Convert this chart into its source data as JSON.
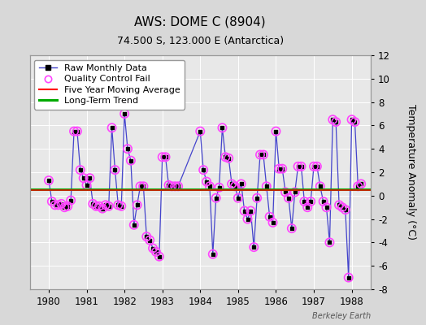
{
  "title": "AWS: DOME C (8904)",
  "subtitle": "74.500 S, 123.000 E (Antarctica)",
  "ylabel": "Temperature Anomaly (°C)",
  "watermark": "Berkeley Earth",
  "ylim": [
    -8,
    12
  ],
  "xlim": [
    1979.5,
    1988.5
  ],
  "yticks": [
    -8,
    -6,
    -4,
    -2,
    0,
    2,
    4,
    6,
    8,
    10,
    12
  ],
  "xticks": [
    1980,
    1981,
    1982,
    1983,
    1984,
    1985,
    1986,
    1987,
    1988
  ],
  "long_term_trend_y": 0.55,
  "background_color": "#d8d8d8",
  "plot_bg_color": "#e8e8e8",
  "raw_x": [
    1980.0,
    1980.083,
    1980.167,
    1980.25,
    1980.333,
    1980.417,
    1980.5,
    1980.583,
    1980.667,
    1980.75,
    1980.833,
    1980.917,
    1981.0,
    1981.083,
    1981.167,
    1981.25,
    1981.333,
    1981.417,
    1981.5,
    1981.583,
    1981.667,
    1981.75,
    1981.833,
    1981.917,
    1982.0,
    1982.083,
    1982.167,
    1982.25,
    1982.333,
    1982.417,
    1982.5,
    1982.583,
    1982.667,
    1982.75,
    1982.833,
    1982.917,
    1983.0,
    1983.083,
    1983.167,
    1983.25,
    1983.333,
    1983.417,
    1984.0,
    1984.083,
    1984.167,
    1984.25,
    1984.333,
    1984.417,
    1984.5,
    1984.583,
    1984.667,
    1984.75,
    1984.833,
    1984.917,
    1985.0,
    1985.083,
    1985.167,
    1985.25,
    1985.333,
    1985.417,
    1985.5,
    1985.583,
    1985.667,
    1985.75,
    1985.833,
    1985.917,
    1986.0,
    1986.083,
    1986.167,
    1986.25,
    1986.333,
    1986.417,
    1986.5,
    1986.583,
    1986.667,
    1986.75,
    1986.833,
    1986.917,
    1987.0,
    1987.083,
    1987.167,
    1987.25,
    1987.333,
    1987.417,
    1987.5,
    1987.583,
    1987.667,
    1987.75,
    1987.833,
    1987.917,
    1988.0,
    1988.083,
    1988.167,
    1988.25
  ],
  "raw_y": [
    1.3,
    -0.5,
    -0.8,
    -0.8,
    -0.7,
    -1.0,
    -0.9,
    -0.4,
    5.5,
    5.5,
    2.2,
    1.5,
    0.9,
    1.5,
    -0.7,
    -0.9,
    -0.9,
    -1.1,
    -0.8,
    -0.9,
    5.8,
    2.2,
    -0.8,
    -0.9,
    7.0,
    4.0,
    3.0,
    -2.5,
    -0.8,
    0.8,
    0.8,
    -3.5,
    -3.8,
    -4.5,
    -4.8,
    -5.2,
    3.3,
    3.3,
    0.9,
    0.8,
    0.8,
    0.8,
    5.5,
    2.2,
    1.2,
    0.8,
    -5.0,
    -0.2,
    0.7,
    5.8,
    3.3,
    3.2,
    1.0,
    0.8,
    -0.2,
    1.0,
    -1.3,
    -2.0,
    -1.3,
    -4.4,
    -0.2,
    3.5,
    3.5,
    0.8,
    -1.8,
    -2.3,
    5.5,
    2.3,
    2.3,
    0.3,
    -0.2,
    -2.8,
    0.3,
    2.5,
    2.5,
    -0.5,
    -1.0,
    -0.5,
    2.5,
    2.5,
    0.8,
    -0.5,
    -1.0,
    -4.0,
    6.5,
    6.3,
    -0.8,
    -1.0,
    -1.2,
    -7.0,
    6.5,
    6.3,
    0.8,
    1.0
  ],
  "qc_x": [
    1980.0,
    1980.083,
    1980.167,
    1980.25,
    1980.333,
    1980.417,
    1980.5,
    1980.583,
    1980.667,
    1980.75,
    1980.833,
    1980.917,
    1981.0,
    1981.083,
    1981.167,
    1981.25,
    1981.333,
    1981.417,
    1981.5,
    1981.583,
    1981.667,
    1981.75,
    1981.833,
    1981.917,
    1982.0,
    1982.083,
    1982.167,
    1982.25,
    1982.333,
    1982.417,
    1982.5,
    1982.583,
    1982.667,
    1982.75,
    1982.833,
    1982.917,
    1983.0,
    1983.083,
    1983.167,
    1983.25,
    1983.333,
    1983.417,
    1984.0,
    1984.083,
    1984.167,
    1984.25,
    1984.333,
    1984.417,
    1984.5,
    1984.583,
    1984.667,
    1984.75,
    1984.833,
    1984.917,
    1985.0,
    1985.083,
    1985.167,
    1985.25,
    1985.333,
    1985.417,
    1985.5,
    1985.583,
    1985.667,
    1985.75,
    1985.833,
    1985.917,
    1986.0,
    1986.083,
    1986.167,
    1986.25,
    1986.333,
    1986.417,
    1986.5,
    1986.583,
    1986.667,
    1986.75,
    1986.833,
    1986.917,
    1987.0,
    1987.083,
    1987.167,
    1987.25,
    1987.333,
    1987.417,
    1987.5,
    1987.583,
    1987.667,
    1987.75,
    1987.833,
    1987.917,
    1988.0,
    1988.083,
    1988.167,
    1988.25
  ],
  "qc_y": [
    1.3,
    -0.5,
    -0.8,
    -0.8,
    -0.7,
    -1.0,
    -0.9,
    -0.4,
    5.5,
    5.5,
    2.2,
    1.5,
    0.9,
    1.5,
    -0.7,
    -0.9,
    -0.9,
    -1.1,
    -0.8,
    -0.9,
    5.8,
    2.2,
    -0.8,
    -0.9,
    7.0,
    4.0,
    3.0,
    -2.5,
    -0.8,
    0.8,
    0.8,
    -3.5,
    -3.8,
    -4.5,
    -4.8,
    -5.2,
    3.3,
    3.3,
    0.9,
    0.8,
    0.8,
    0.8,
    5.5,
    2.2,
    1.2,
    0.8,
    -5.0,
    -0.2,
    0.7,
    5.8,
    3.3,
    3.2,
    1.0,
    0.8,
    -0.2,
    1.0,
    -1.3,
    -2.0,
    -1.3,
    -4.4,
    -0.2,
    3.5,
    3.5,
    0.8,
    -1.8,
    -2.3,
    5.5,
    2.3,
    2.3,
    0.3,
    -0.2,
    -2.8,
    0.3,
    2.5,
    2.5,
    -0.5,
    -1.0,
    -0.5,
    2.5,
    2.5,
    0.8,
    -0.5,
    -1.0,
    -4.0,
    6.5,
    6.3,
    -0.8,
    -1.0,
    -1.2,
    -7.0,
    6.5,
    6.3,
    0.8,
    1.0
  ],
  "line_color": "#4444cc",
  "marker_color": "black",
  "qc_color": "#ff44ff",
  "ma_color": "red",
  "trend_color": "#00aa00",
  "title_fontsize": 11,
  "subtitle_fontsize": 9,
  "axis_fontsize": 9,
  "tick_fontsize": 8.5,
  "legend_fontsize": 8
}
